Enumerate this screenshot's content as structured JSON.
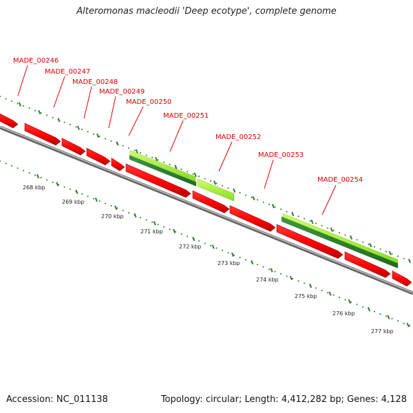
{
  "title": "Alteromonas macleodii 'Deep ecotype', complete genome",
  "footer": {
    "accession_label": "Accession:",
    "accession": "NC_011138",
    "topology_label": "Topology:",
    "topology": "circular",
    "length_label": "Length:",
    "length": "4,412,282 bp",
    "genes_label": "Genes:",
    "genes": "4,128"
  },
  "colors": {
    "gene_forward": "#ff0000",
    "gene_forward_dark": "#a00000",
    "feature_light": "#aaff22",
    "feature_dark": "#2e8b2e",
    "backbone": "#888888",
    "ruler": "#2e7d2e",
    "gene_label": "#dd0000",
    "tick_label": "#222222"
  },
  "gene_labels": [
    "MADE_00246",
    "MADE_00247",
    "MADE_00248",
    "MADE_00249",
    "MADE_00250",
    "MADE_00251",
    "MADE_00252",
    "MADE_00253",
    "MADE_00254"
  ],
  "scale_labels": [
    "268 kbp",
    "269 kbp",
    "270 kbp",
    "271 kbp",
    "272 kbp",
    "273 kbp",
    "274 kbp",
    "275 kbp",
    "276 kbp",
    "277 kbp"
  ]
}
